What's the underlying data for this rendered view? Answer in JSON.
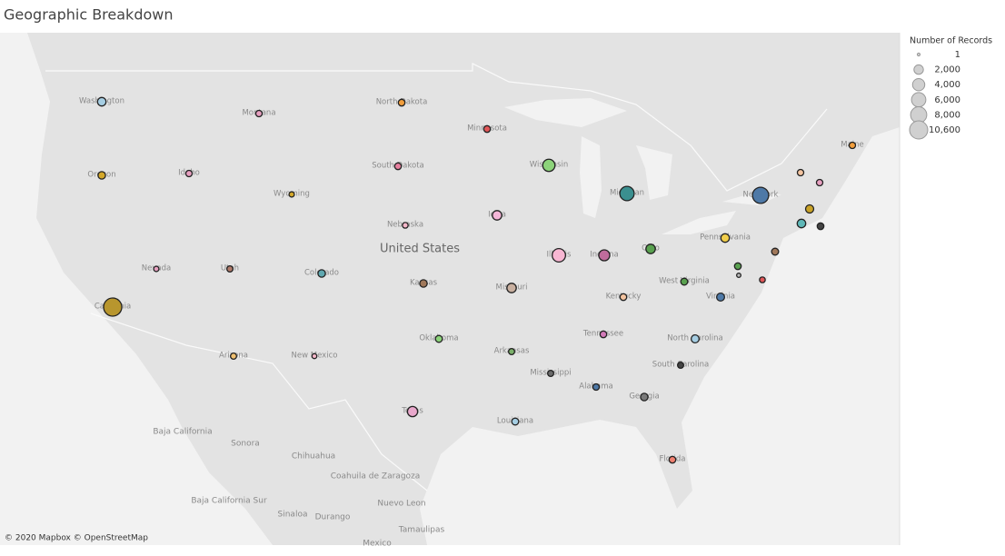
{
  "header": {
    "title": "Geographic Breakdown"
  },
  "map": {
    "attribution": "© 2020 Mapbox © OpenStreetMap",
    "region_labels": [
      "United States",
      "Baja California",
      "Sonora",
      "Chihuahua",
      "Coahuila de Zaragoza",
      "Baja California Sur",
      "Sinaloa",
      "Durango",
      "Nuevo Leon",
      "Tamaulipas",
      "Mexico"
    ],
    "points": [
      {
        "label": "Washington",
        "value": 1500,
        "color": "#a6cee3"
      },
      {
        "label": "Oregon",
        "value": 1000,
        "color": "#d4a82a"
      },
      {
        "label": "Idaho",
        "value": 600,
        "color": "#e7a0c0"
      },
      {
        "label": "Montana",
        "value": 600,
        "color": "#e7a0c0"
      },
      {
        "label": "Wyoming",
        "value": 300,
        "color": "#d4a82a"
      },
      {
        "label": "Nevada",
        "value": 300,
        "color": "#e7a0c0"
      },
      {
        "label": "Utah",
        "value": 500,
        "color": "#b07a6a"
      },
      {
        "label": "California",
        "value": 10600,
        "color": "#b8962e"
      },
      {
        "label": "Arizona",
        "value": 500,
        "color": "#f0c070"
      },
      {
        "label": "New Mexico",
        "value": 200,
        "color": "#f4b6c8"
      },
      {
        "label": "Colorado",
        "value": 1000,
        "color": "#5fa8b0"
      },
      {
        "label": "North Dakota",
        "value": 700,
        "color": "#f29e3c"
      },
      {
        "label": "South Dakota",
        "value": 700,
        "color": "#e7809f"
      },
      {
        "label": "Nebraska",
        "value": 400,
        "color": "#f4b6c8"
      },
      {
        "label": "Kansas",
        "value": 1000,
        "color": "#a0785a"
      },
      {
        "label": "Oklahoma",
        "value": 800,
        "color": "#8cd37a"
      },
      {
        "label": "Texas",
        "value": 2500,
        "color": "#e9a8cc"
      },
      {
        "label": "Minnesota",
        "value": 700,
        "color": "#e15759"
      },
      {
        "label": "Iowa",
        "value": 2000,
        "color": "#f4b6d8"
      },
      {
        "label": "Missouri",
        "value": 2000,
        "color": "#c9b0a0"
      },
      {
        "label": "Arkansas",
        "value": 500,
        "color": "#7bb06a"
      },
      {
        "label": "Louisiana",
        "value": 800,
        "color": "#a6cee3"
      },
      {
        "label": "Wisconsin",
        "value": 4000,
        "color": "#8cd37a"
      },
      {
        "label": "Illinois",
        "value": 5000,
        "color": "#f7b6d2"
      },
      {
        "label": "Michigan",
        "value": 6000,
        "color": "#3b8f8f"
      },
      {
        "label": "Indiana",
        "value": 3000,
        "color": "#c06c9c"
      },
      {
        "label": "Ohio",
        "value": 2000,
        "color": "#59a14f"
      },
      {
        "label": "Kentucky",
        "value": 700,
        "color": "#f4c4a0"
      },
      {
        "label": "Tennessee",
        "value": 700,
        "color": "#d27ab8"
      },
      {
        "label": "Mississippi",
        "value": 500,
        "color": "#6a6a6a"
      },
      {
        "label": "Alabama",
        "value": 600,
        "color": "#4e79a7"
      },
      {
        "label": "Georgia",
        "value": 1000,
        "color": "#7a7a7a"
      },
      {
        "label": "Florida",
        "value": 700,
        "color": "#f08070"
      },
      {
        "label": "South Carolina",
        "value": 500,
        "color": "#444444"
      },
      {
        "label": "North Carolina",
        "value": 1200,
        "color": "#a6cee3"
      },
      {
        "label": "Virginia",
        "value": 1200,
        "color": "#4e79a7"
      },
      {
        "label": "West Virginia",
        "value": 800,
        "color": "#59a14f"
      },
      {
        "label": "Pennsylvania",
        "value": 1500,
        "color": "#f1ce4b"
      },
      {
        "label": "New York",
        "value": 8000,
        "color": "#4e79a7"
      },
      {
        "label": null,
        "value": 700,
        "color": "#59a14f"
      },
      {
        "label": null,
        "value": 100,
        "color": "#bbbbbb"
      },
      {
        "label": null,
        "value": 400,
        "color": "#e15759"
      },
      {
        "label": null,
        "value": 800,
        "color": "#a0785a"
      },
      {
        "label": null,
        "value": 1500,
        "color": "#5fb8b8"
      },
      {
        "label": null,
        "value": 700,
        "color": "#444444"
      },
      {
        "label": null,
        "value": 1300,
        "color": "#c9a227"
      },
      {
        "label": null,
        "value": 600,
        "color": "#f4c4a0"
      },
      {
        "label": null,
        "value": 600,
        "color": "#e7a0c0"
      },
      {
        "label": "Maine",
        "value": 600,
        "color": "#f29e3c"
      }
    ]
  },
  "legend": {
    "title": "Number of Records",
    "sizes": [
      1,
      {
        "value": 2000,
        "label": "2,000"
      },
      {
        "value": 4000,
        "label": "4,000"
      },
      {
        "value": 6000,
        "label": "6,000"
      },
      {
        "value": 8000,
        "label": "8,000"
      },
      {
        "value": 10600,
        "label": "10,600"
      }
    ]
  }
}
